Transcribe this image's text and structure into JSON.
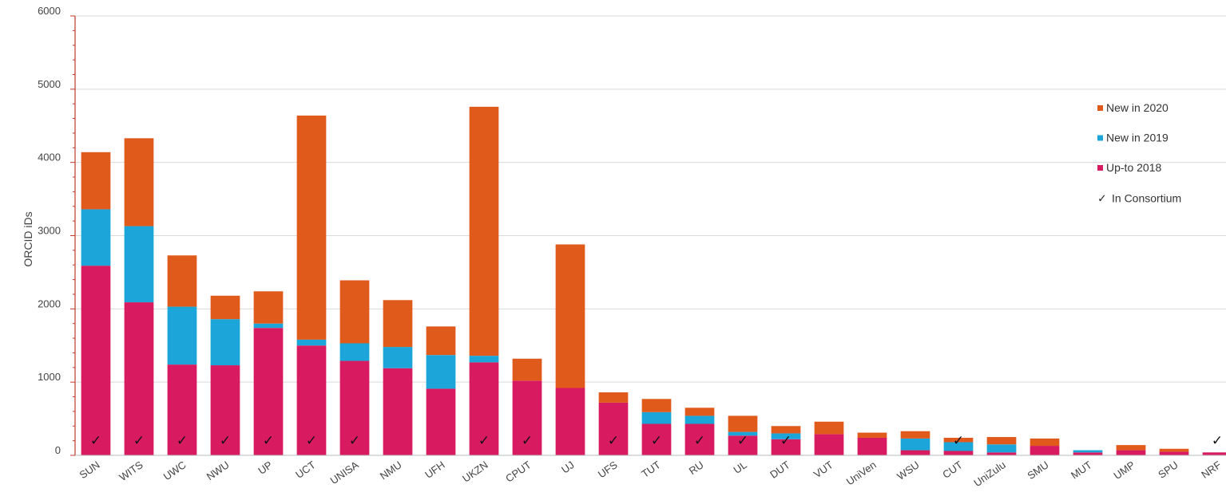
{
  "chart_data": {
    "type": "bar",
    "stacked": true,
    "ylabel": "ORCID iDs",
    "xlabel": "",
    "ylim": [
      0,
      6000
    ],
    "yticks": [
      0,
      1000,
      2000,
      3000,
      4000,
      5000,
      6000
    ],
    "grid": true,
    "legend_position": "right",
    "categories": [
      "SUN",
      "WITS",
      "UWC",
      "NWU",
      "UP",
      "UCT",
      "UNISA",
      "NMU",
      "UFH",
      "UKZN",
      "CPUT",
      "UJ",
      "UFS",
      "TUT",
      "RU",
      "UL",
      "DUT",
      "VUT",
      "UniVen",
      "WSU",
      "CUT",
      "UniZulu",
      "SMU",
      "MUT",
      "UMP",
      "SPU",
      "NRF"
    ],
    "series": [
      {
        "name": "Up-to 2018",
        "color": "#d81b60",
        "values": [
          2590,
          2090,
          1240,
          1230,
          1740,
          1500,
          1290,
          1190,
          910,
          1270,
          1020,
          920,
          720,
          430,
          430,
          270,
          220,
          290,
          240,
          70,
          60,
          40,
          130,
          40,
          70,
          50,
          40
        ]
      },
      {
        "name": "New in 2019",
        "color": "#1ba5d8",
        "values": [
          770,
          1040,
          790,
          630,
          60,
          80,
          240,
          290,
          460,
          90,
          0,
          0,
          0,
          160,
          110,
          50,
          80,
          0,
          0,
          160,
          120,
          110,
          0,
          30,
          0,
          0,
          0
        ]
      },
      {
        "name": "New in 2020",
        "color": "#e05a1c",
        "values": [
          780,
          1200,
          700,
          320,
          440,
          3060,
          860,
          640,
          390,
          3400,
          300,
          1960,
          140,
          180,
          110,
          220,
          100,
          170,
          70,
          100,
          60,
          100,
          100,
          0,
          70,
          40,
          0
        ]
      }
    ],
    "in_consortium": [
      true,
      true,
      true,
      true,
      true,
      true,
      true,
      false,
      false,
      true,
      true,
      false,
      true,
      true,
      true,
      true,
      true,
      false,
      false,
      false,
      true,
      false,
      false,
      false,
      false,
      false,
      true
    ],
    "consortium_marker": "✓",
    "legend": [
      {
        "label": "New in 2020",
        "color": "#e05a1c"
      },
      {
        "label": "New in 2019",
        "color": "#1ba5d8"
      },
      {
        "label": "Up-to 2018",
        "color": "#d81b60"
      },
      {
        "label": "In Consortium",
        "marker": "✓"
      }
    ]
  }
}
